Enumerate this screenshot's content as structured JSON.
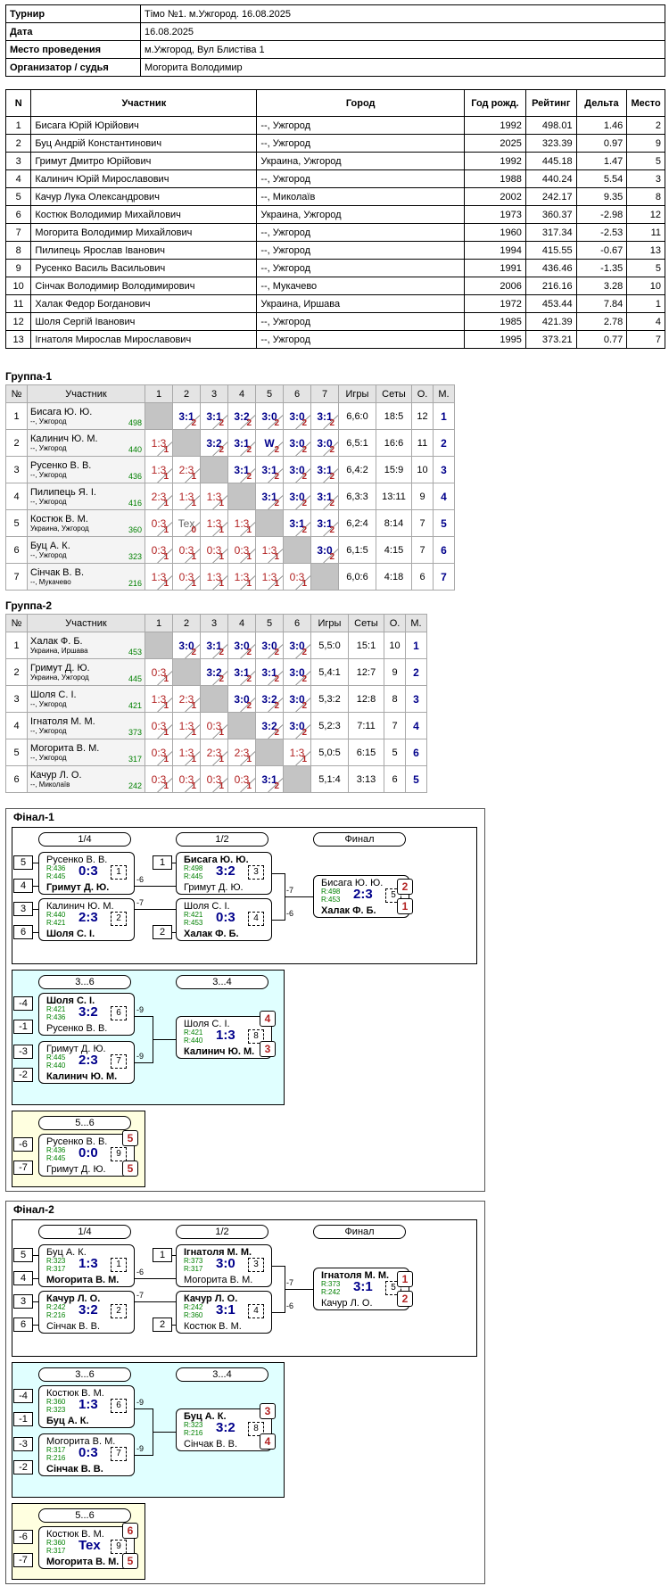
{
  "info": [
    {
      "k": "Турнир",
      "v": "Тімо №1. м.Ужгород. 16.08.2025"
    },
    {
      "k": "Дата",
      "v": "16.08.2025"
    },
    {
      "k": "Место проведения",
      "v": "м.Ужгород, Вул Блистіва 1"
    },
    {
      "k": "Организатор / судья",
      "v": "Могорита Володимир"
    }
  ],
  "participants": {
    "headers": [
      "N",
      "Участник",
      "Город",
      "Год рожд.",
      "Рейтинг",
      "Дельта",
      "Место"
    ],
    "rows": [
      [
        "1",
        "Бисага Юрій Юрійович",
        "--, Ужгород",
        "1992",
        "498.01",
        "1.46",
        "2"
      ],
      [
        "2",
        "Буц Андрій Константинович",
        "--, Ужгород",
        "2025",
        "323.39",
        "0.97",
        "9"
      ],
      [
        "3",
        "Гримут Дмитро Юрійович",
        "Украина, Ужгород",
        "1992",
        "445.18",
        "1.47",
        "5"
      ],
      [
        "4",
        "Калинич Юрій Мирославович",
        "--, Ужгород",
        "1988",
        "440.24",
        "5.54",
        "3"
      ],
      [
        "5",
        "Качур Лука Олександрович",
        "--, Миколаїв",
        "2002",
        "242.17",
        "9.35",
        "8"
      ],
      [
        "6",
        "Костюк Володимир Михайлович",
        "Украина, Ужгород",
        "1973",
        "360.37",
        "-2.98",
        "12"
      ],
      [
        "7",
        "Могорита Володимир Михайлович",
        "--, Ужгород",
        "1960",
        "317.34",
        "-2.53",
        "11"
      ],
      [
        "8",
        "Пилипець Ярослав Іванович",
        "--, Ужгород",
        "1994",
        "415.55",
        "-0.67",
        "13"
      ],
      [
        "9",
        "Русенко Василь Васильович",
        "--, Ужгород",
        "1991",
        "436.46",
        "-1.35",
        "5"
      ],
      [
        "10",
        "Сінчак Володимир Володимирович",
        "--, Мукачево",
        "2006",
        "216.16",
        "3.28",
        "10"
      ],
      [
        "11",
        "Халак Федор Богданович",
        "Украина, Иршава",
        "1972",
        "453.44",
        "7.84",
        "1"
      ],
      [
        "12",
        "Шоля Сергій Іванович",
        "--, Ужгород",
        "1985",
        "421.39",
        "2.78",
        "4"
      ],
      [
        "13",
        "Ігнатоля Мирослав Мирославович",
        "--, Ужгород",
        "1995",
        "373.21",
        "0.77",
        "7"
      ]
    ]
  },
  "group1": {
    "title": "Группа-1",
    "headers": [
      "№",
      "Участник",
      "1",
      "2",
      "3",
      "4",
      "5",
      "6",
      "7",
      "Игры",
      "Сеты",
      "О.",
      "М."
    ],
    "rows": [
      {
        "n": "1",
        "a": "Бисага Ю. Ю.",
        "b": "--, Ужгород",
        "r": "498",
        "cells": [
          "",
          "3:1|2",
          "3:1|2",
          "3:2|2",
          "3:0|2",
          "3:0|2",
          "3:1|2"
        ],
        "g": "6,6:0",
        "s": "18:5",
        "o": "12",
        "m": "1"
      },
      {
        "n": "2",
        "a": "Калинич Ю. М.",
        "b": "--, Ужгород",
        "r": "440",
        "cells": [
          "1:3|1",
          "",
          "3:2|2",
          "3:1|2",
          "W|2",
          "3:0|2",
          "3:0|2"
        ],
        "g": "6,5:1",
        "s": "16:6",
        "o": "11",
        "m": "2"
      },
      {
        "n": "3",
        "a": "Русенко В. В.",
        "b": "--, Ужгород",
        "r": "436",
        "cells": [
          "1:3|1",
          "2:3|1",
          "",
          "3:1|2",
          "3:1|2",
          "3:0|2",
          "3:1|2"
        ],
        "g": "6,4:2",
        "s": "15:9",
        "o": "10",
        "m": "3"
      },
      {
        "n": "4",
        "a": "Пилипець Я. І.",
        "b": "--, Ужгород",
        "r": "416",
        "cells": [
          "2:3|1",
          "1:3|1",
          "1:3|1",
          "",
          "3:1|2",
          "3:0|2",
          "3:1|2"
        ],
        "g": "6,3:3",
        "s": "13:11",
        "o": "9",
        "m": "4"
      },
      {
        "n": "5",
        "a": "Костюк В. М.",
        "b": "Украина, Ужгород",
        "r": "360",
        "cells": [
          "0:3|1",
          "Tex|0",
          "1:3|1",
          "1:3|1",
          "",
          "3:1|2",
          "3:1|2"
        ],
        "g": "6,2:4",
        "s": "8:14",
        "o": "7",
        "m": "5"
      },
      {
        "n": "6",
        "a": "Буц А. К.",
        "b": "--, Ужгород",
        "r": "323",
        "cells": [
          "0:3|1",
          "0:3|1",
          "0:3|1",
          "0:3|1",
          "1:3|1",
          "",
          "3:0|2"
        ],
        "g": "6,1:5",
        "s": "4:15",
        "o": "7",
        "m": "6"
      },
      {
        "n": "7",
        "a": "Сінчак В. В.",
        "b": "--, Мукачево",
        "r": "216",
        "cells": [
          "1:3|1",
          "0:3|1",
          "1:3|1",
          "1:3|1",
          "1:3|1",
          "0:3|1",
          ""
        ],
        "g": "6,0:6",
        "s": "4:18",
        "o": "6",
        "m": "7"
      }
    ]
  },
  "group2": {
    "title": "Группа-2",
    "headers": [
      "№",
      "Участник",
      "1",
      "2",
      "3",
      "4",
      "5",
      "6",
      "Игры",
      "Сеты",
      "О.",
      "М."
    ],
    "rows": [
      {
        "n": "1",
        "a": "Халак Ф. Б.",
        "b": "Украина, Иршава",
        "r": "453",
        "cells": [
          "",
          "3:0|2",
          "3:1|2",
          "3:0|2",
          "3:0|2",
          "3:0|2"
        ],
        "g": "5,5:0",
        "s": "15:1",
        "o": "10",
        "m": "1"
      },
      {
        "n": "2",
        "a": "Гримут Д. Ю.",
        "b": "Украина, Ужгород",
        "r": "445",
        "cells": [
          "0:3|1",
          "",
          "3:2|2",
          "3:1|2",
          "3:1|2",
          "3:0|2"
        ],
        "g": "5,4:1",
        "s": "12:7",
        "o": "9",
        "m": "2"
      },
      {
        "n": "3",
        "a": "Шоля С. І.",
        "b": "--, Ужгород",
        "r": "421",
        "cells": [
          "1:3|1",
          "2:3|1",
          "",
          "3:0|2",
          "3:2|2",
          "3:0|2"
        ],
        "g": "5,3:2",
        "s": "12:8",
        "o": "8",
        "m": "3"
      },
      {
        "n": "4",
        "a": "Ігнатоля М. М.",
        "b": "--, Ужгород",
        "r": "373",
        "cells": [
          "0:3|1",
          "1:3|1",
          "0:3|1",
          "",
          "3:2|2",
          "3:0|2"
        ],
        "g": "5,2:3",
        "s": "7:11",
        "o": "7",
        "m": "4"
      },
      {
        "n": "5",
        "a": "Могорита В. М.",
        "b": "--, Ужгород",
        "r": "317",
        "cells": [
          "0:3|1",
          "1:3|1",
          "2:3|1",
          "2:3|1",
          "",
          "1:3|1"
        ],
        "g": "5,0:5",
        "s": "6:15",
        "o": "5",
        "m": "6"
      },
      {
        "n": "6",
        "a": "Качур Л. О.",
        "b": "--, Миколаїв",
        "r": "242",
        "cells": [
          "0:3|1",
          "0:3|1",
          "0:3|1",
          "0:3|1",
          "3:1|2",
          ""
        ],
        "g": "5,1:4",
        "s": "3:13",
        "o": "6",
        "m": "5"
      }
    ]
  },
  "final1": {
    "title": "Фінал-1",
    "pills": [
      "1/4",
      "1/2",
      "Финал",
      "3...6",
      "3...4",
      "5...6"
    ],
    "m1": {
      "p1": "Русенко В. В.",
      "r1": "R:436",
      "r2": "R:445",
      "p2": "Гримут Д. Ю.",
      "sc": "0:3",
      "mn": "1",
      "s1": "5",
      "s2": "4",
      "w": 2
    },
    "m2": {
      "p1": "Калинич Ю. М.",
      "r1": "R:440",
      "r2": "R:421",
      "p2": "Шоля С. І.",
      "sc": "2:3",
      "mn": "2",
      "s1": "3",
      "s2": "6",
      "w": 2
    },
    "m3": {
      "p1": "Бисага Ю. Ю.",
      "r1": "R:498",
      "r2": "R:445",
      "p2": "Гримут Д. Ю.",
      "sc": "3:2",
      "mn": "3",
      "s1": "1",
      "w": 1
    },
    "m4": {
      "p1": "Шоля С. І.",
      "r1": "R:421",
      "r2": "R:453",
      "p2": "Халак Ф. Б.",
      "sc": "0:3",
      "mn": "4",
      "s2": "2",
      "w": 2
    },
    "m5": {
      "p1": "Бисага Ю. Ю.",
      "r1": "R:498",
      "r2": "R:453",
      "p2": "Халак Ф. Б.",
      "sc": "2:3",
      "mn": "5",
      "pl1": "2",
      "pl2": "1",
      "w": 2
    },
    "m6": {
      "p1": "Шоля С. І.",
      "r1": "R:421",
      "r2": "R:436",
      "p2": "Русенко В. В.",
      "sc": "3:2",
      "mn": "6",
      "s1": "-4",
      "s2": "-1",
      "w": 1
    },
    "m7": {
      "p1": "Гримут Д. Ю.",
      "r1": "R:445",
      "r2": "R:440",
      "p2": "Калинич Ю. М.",
      "sc": "2:3",
      "mn": "7",
      "s1": "-3",
      "s2": "-2",
      "w": 2
    },
    "m8": {
      "p1": "Шоля С. І.",
      "r1": "R:421",
      "r2": "R:440",
      "p2": "Калинич Ю. М.",
      "sc": "1:3",
      "mn": "8",
      "pl1": "4",
      "pl2": "3",
      "w": 2
    },
    "m9": {
      "p1": "Русенко В. В.",
      "r1": "R:436",
      "r2": "R:445",
      "p2": "Гримут Д. Ю.",
      "sc": "0:0",
      "mn": "9",
      "s1": "-6",
      "s2": "-7",
      "pl1": "5",
      "pl2": "5",
      "w": 0
    },
    "lbl": [
      "-6",
      "-7",
      "-6",
      "-9",
      "-9"
    ]
  },
  "final2": {
    "title": "Фінал-2",
    "pills": [
      "1/4",
      "1/2",
      "Финал",
      "3...6",
      "3...4",
      "5...6"
    ],
    "m1": {
      "p1": "Буц А. К.",
      "r1": "R:323",
      "r2": "R:317",
      "p2": "Могорита В. М.",
      "sc": "1:3",
      "mn": "1",
      "s1": "5",
      "s2": "4",
      "w": 2
    },
    "m2": {
      "p1": "Качур Л. О.",
      "r1": "R:242",
      "r2": "R:216",
      "p2": "Сінчак В. В.",
      "sc": "3:2",
      "mn": "2",
      "s1": "3",
      "s2": "6",
      "w": 1
    },
    "m3": {
      "p1": "Ігнатоля М. М.",
      "r1": "R:373",
      "r2": "R:317",
      "p2": "Могорита В. М.",
      "sc": "3:0",
      "mn": "3",
      "s1": "1",
      "w": 1
    },
    "m4": {
      "p1": "Качур Л. О.",
      "r1": "R:242",
      "r2": "R:360",
      "p2": "Костюк В. М.",
      "sc": "3:1",
      "mn": "4",
      "s2": "2",
      "w": 1
    },
    "m5": {
      "p1": "Ігнатоля М. М.",
      "r1": "R:373",
      "r2": "R:242",
      "p2": "Качур Л. О.",
      "sc": "3:1",
      "mn": "5",
      "pl1": "1",
      "pl2": "2",
      "w": 1
    },
    "m6": {
      "p1": "Костюк В. М.",
      "r1": "R:360",
      "r2": "R:323",
      "p2": "Буц А. К.",
      "sc": "1:3",
      "mn": "6",
      "s1": "-4",
      "s2": "-1",
      "w": 2
    },
    "m7": {
      "p1": "Могорита В. М.",
      "r1": "R:317",
      "r2": "R:216",
      "p2": "Сінчак В. В.",
      "sc": "0:3",
      "mn": "7",
      "s1": "-3",
      "s2": "-2",
      "w": 2
    },
    "m8": {
      "p1": "Буц А. К.",
      "r1": "R:323",
      "r2": "R:216",
      "p2": "Сінчак В. В.",
      "sc": "3:2",
      "mn": "8",
      "pl1": "3",
      "pl2": "4",
      "w": 1
    },
    "m9": {
      "p1": "Костюк В. М.",
      "r1": "R:360",
      "r2": "R:317",
      "p2": "Могорита В. М.",
      "sc": "Tex",
      "mn": "9",
      "s1": "-6",
      "s2": "-7",
      "pl1": "6",
      "pl2": "5",
      "w": 2
    },
    "lbl": [
      "-6",
      "-7",
      "-6",
      "-9",
      "-9"
    ]
  }
}
